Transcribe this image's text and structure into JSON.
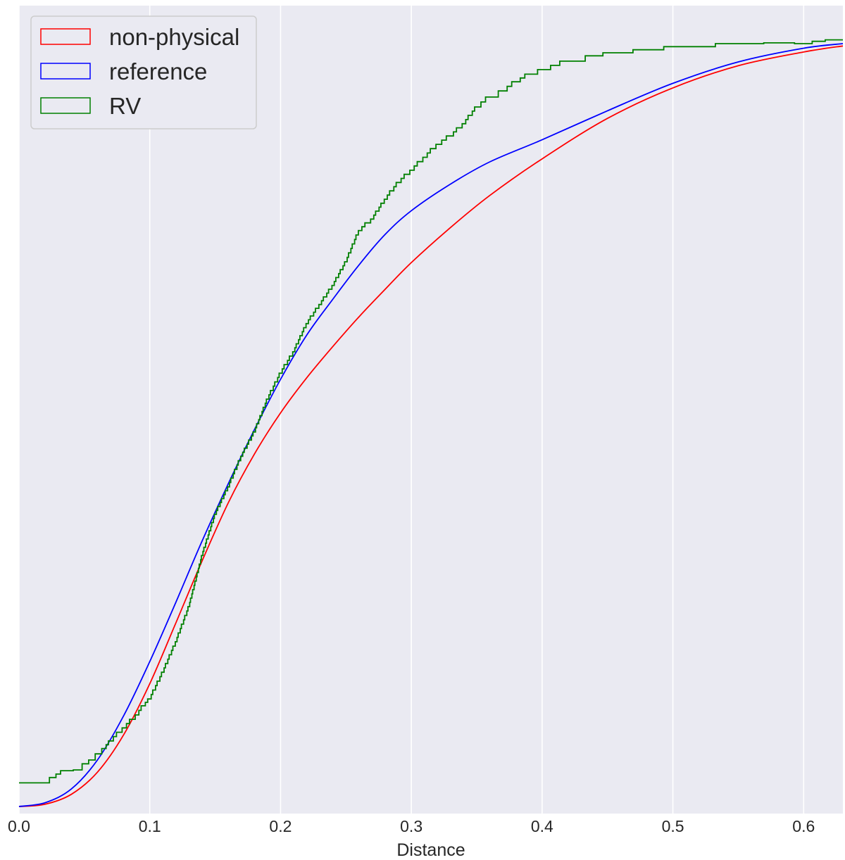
{
  "chart_data": {
    "type": "line",
    "title": "",
    "xlabel": "Distance",
    "ylabel": "",
    "xlim": [
      0.0,
      0.63
    ],
    "ylim": [
      0.0,
      1.0
    ],
    "xticks": [
      0.0,
      0.1,
      0.2,
      0.3,
      0.4,
      0.5,
      0.6
    ],
    "xtick_labels": [
      "0.0",
      "0.1",
      "0.2",
      "0.3",
      "0.4",
      "0.5",
      "0.6"
    ],
    "grid": true,
    "legend_position": "top-left",
    "legend_patch_style": "outlined rectangle",
    "series": [
      {
        "name": "non-physical",
        "color": "#ff0000",
        "style": "smooth",
        "x": [
          0.0,
          0.02,
          0.04,
          0.06,
          0.08,
          0.1,
          0.12,
          0.14,
          0.16,
          0.18,
          0.2,
          0.22,
          0.24,
          0.26,
          0.28,
          0.3,
          0.33,
          0.36,
          0.4,
          0.45,
          0.5,
          0.55,
          0.6,
          0.63
        ],
        "y": [
          0.0,
          0.003,
          0.016,
          0.045,
          0.094,
          0.161,
          0.241,
          0.322,
          0.398,
          0.462,
          0.516,
          0.562,
          0.603,
          0.642,
          0.678,
          0.713,
          0.759,
          0.801,
          0.849,
          0.902,
          0.942,
          0.971,
          0.989,
          0.997
        ]
      },
      {
        "name": "reference",
        "color": "#0000ff",
        "style": "smooth",
        "x": [
          0.0,
          0.02,
          0.04,
          0.06,
          0.08,
          0.1,
          0.12,
          0.14,
          0.16,
          0.18,
          0.2,
          0.22,
          0.24,
          0.26,
          0.28,
          0.3,
          0.33,
          0.36,
          0.4,
          0.45,
          0.5,
          0.55,
          0.6,
          0.63
        ],
        "y": [
          0.0,
          0.005,
          0.023,
          0.061,
          0.119,
          0.19,
          0.268,
          0.348,
          0.423,
          0.494,
          0.56,
          0.618,
          0.665,
          0.71,
          0.75,
          0.781,
          0.816,
          0.845,
          0.874,
          0.912,
          0.948,
          0.976,
          0.994,
          1.0
        ]
      },
      {
        "name": "RV",
        "color": "#008000",
        "style": "step",
        "x": [
          0.0,
          0.02,
          0.025,
          0.035,
          0.045,
          0.05,
          0.055,
          0.06,
          0.065,
          0.07,
          0.08,
          0.09,
          0.095,
          0.1,
          0.11,
          0.12,
          0.13,
          0.14,
          0.15,
          0.16,
          0.17,
          0.18,
          0.19,
          0.2,
          0.21,
          0.22,
          0.23,
          0.24,
          0.25,
          0.26,
          0.27,
          0.28,
          0.29,
          0.3,
          0.31,
          0.32,
          0.33,
          0.34,
          0.35,
          0.36,
          0.37,
          0.38,
          0.39,
          0.4,
          0.42,
          0.44,
          0.45,
          0.48,
          0.5,
          0.55,
          0.58,
          0.6,
          0.61,
          0.62,
          0.63
        ],
        "y": [
          0.031,
          0.031,
          0.038,
          0.047,
          0.048,
          0.056,
          0.061,
          0.069,
          0.076,
          0.086,
          0.103,
          0.12,
          0.132,
          0.141,
          0.176,
          0.216,
          0.262,
          0.329,
          0.383,
          0.419,
          0.459,
          0.491,
          0.534,
          0.568,
          0.596,
          0.633,
          0.658,
          0.683,
          0.714,
          0.755,
          0.77,
          0.796,
          0.818,
          0.834,
          0.851,
          0.868,
          0.879,
          0.895,
          0.917,
          0.93,
          0.938,
          0.95,
          0.96,
          0.966,
          0.977,
          0.984,
          0.988,
          0.992,
          0.996,
          1.0,
          1.001,
          1.0,
          1.003,
          1.005,
          1.005
        ]
      }
    ]
  }
}
